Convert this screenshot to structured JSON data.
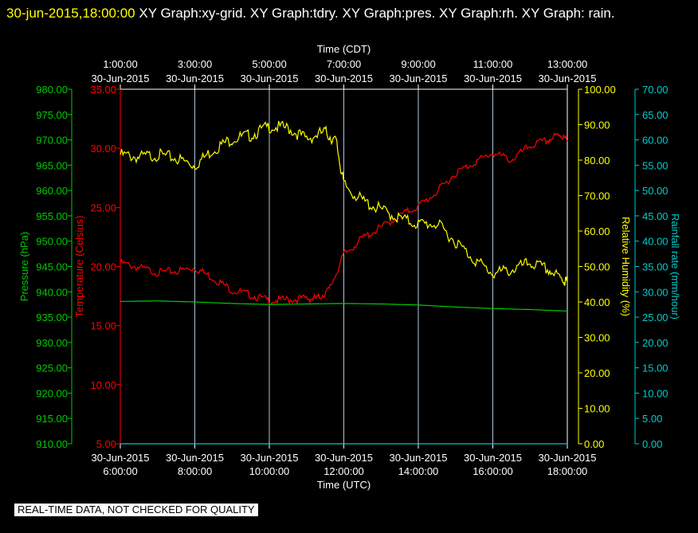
{
  "header": {
    "timestamp": "30-jun-2015,18:00:00",
    "graphs": "  XY Graph:xy-grid.  XY Graph:tdry.  XY Graph:pres.  XY Graph:rh.  XY Graph: rain."
  },
  "notice": "REAL-TIME DATA, NOT CHECKED FOR QUALITY",
  "colors": {
    "pressure": "#00cc00",
    "temperature": "#ff0000",
    "humidity": "#ffff00",
    "rain": "#00cccc",
    "grid": "#b0c4d8"
  },
  "chart_data": {
    "type": "line",
    "x_top": {
      "label": "Time (CDT)",
      "ticks": [
        {
          "time": "1:00:00",
          "date": "30-Jun-2015"
        },
        {
          "time": "3:00:00",
          "date": "30-Jun-2015"
        },
        {
          "time": "5:00:00",
          "date": "30-Jun-2015"
        },
        {
          "time": "7:00:00",
          "date": "30-Jun-2015"
        },
        {
          "time": "9:00:00",
          "date": "30-Jun-2015"
        },
        {
          "time": "11:00:00",
          "date": "30-Jun-2015"
        },
        {
          "time": "13:00:00",
          "date": "30-Jun-2015"
        }
      ]
    },
    "x_bottom": {
      "label": "Time (UTC)",
      "range": [
        "2015-06-30 06:00",
        "2015-06-30 18:00"
      ],
      "ticks": [
        {
          "date": "30-Jun-2015",
          "time": "6:00:00"
        },
        {
          "date": "30-Jun-2015",
          "time": "8:00:00"
        },
        {
          "date": "30-Jun-2015",
          "time": "10:00:00"
        },
        {
          "date": "30-Jun-2015",
          "time": "12:00:00"
        },
        {
          "date": "30-Jun-2015",
          "time": "14:00:00"
        },
        {
          "date": "30-Jun-2015",
          "time": "16:00:00"
        },
        {
          "date": "30-Jun-2015",
          "time": "18:00:00"
        }
      ]
    },
    "axes": {
      "pressure": {
        "label": "Pressure (hPa)",
        "range": [
          910,
          980
        ],
        "ticks": [
          "980.00",
          "975.00",
          "970.00",
          "965.00",
          "960.00",
          "955.00",
          "950.00",
          "945.00",
          "940.00",
          "935.00",
          "930.00",
          "925.00",
          "920.00",
          "915.00",
          "910.00"
        ]
      },
      "temperature": {
        "label": "Temperature (Celsius)",
        "range": [
          5,
          35
        ],
        "ticks": [
          "35.00",
          "30.00",
          "25.00",
          "20.00",
          "15.00",
          "10.00",
          "5.00"
        ]
      },
      "humidity": {
        "label": "Relative Humidity (%)",
        "range": [
          0,
          100
        ],
        "ticks": [
          "100.00",
          "90.00",
          "80.00",
          "70.00",
          "60.00",
          "50.00",
          "40.00",
          "30.00",
          "20.00",
          "10.00",
          "0.00"
        ]
      },
      "rain": {
        "label": "Rainfall rate (mm/hour)",
        "range": [
          0,
          70
        ],
        "ticks": [
          "70.00",
          "65.00",
          "60.00",
          "55.00",
          "50.00",
          "45.00",
          "40.00",
          "35.00",
          "30.00",
          "25.00",
          "20.00",
          "15.00",
          "10.00",
          "5.00",
          "0.00"
        ]
      }
    },
    "grid": true,
    "series": [
      {
        "key": "temperature",
        "x": [
          6.0,
          6.5,
          7.0,
          7.5,
          8.0,
          8.5,
          9.0,
          9.5,
          10.0,
          10.5,
          11.0,
          11.3,
          11.6,
          12.0,
          12.5,
          13.0,
          13.5,
          14.0,
          14.5,
          15.0,
          15.5,
          16.0,
          16.5,
          17.0,
          17.5,
          17.8,
          18.0
        ],
        "y": [
          20.3,
          19.9,
          19.5,
          19.6,
          19.9,
          19.0,
          18.0,
          17.6,
          17.1,
          17.2,
          17.3,
          17.3,
          18.0,
          21.0,
          22.4,
          23.3,
          24.3,
          25.1,
          26.3,
          27.9,
          28.8,
          29.6,
          29.0,
          30.2,
          30.7,
          31.2,
          30.6
        ]
      },
      {
        "key": "humidity",
        "x": [
          6.0,
          6.5,
          7.0,
          7.5,
          8.0,
          8.5,
          9.0,
          9.5,
          10.0,
          10.5,
          11.0,
          11.5,
          11.8,
          12.0,
          12.5,
          13.0,
          13.5,
          14.0,
          14.5,
          15.0,
          15.5,
          16.0,
          16.5,
          17.0,
          17.5,
          17.9,
          18.0
        ],
        "y": [
          81.5,
          80.8,
          81.5,
          80.5,
          78.5,
          83.0,
          86.0,
          87.0,
          89.5,
          89.0,
          86.0,
          88.0,
          85.0,
          73.0,
          68.5,
          66.0,
          63.5,
          62.0,
          62.0,
          57.0,
          52.0,
          48.0,
          49.0,
          51.0,
          49.0,
          46.0,
          45.5
        ]
      },
      {
        "key": "pressure",
        "x": [
          6.0,
          7.0,
          8.0,
          9.0,
          10.0,
          11.0,
          12.0,
          13.0,
          14.0,
          15.0,
          16.0,
          17.0,
          18.0
        ],
        "y": [
          938.1,
          938.2,
          938.0,
          937.7,
          937.5,
          937.6,
          937.7,
          937.6,
          937.4,
          937.0,
          936.7,
          936.5,
          936.2
        ]
      },
      {
        "key": "rain",
        "x": [
          6.0,
          18.0
        ],
        "y": [
          0.0,
          0.0
        ]
      }
    ]
  }
}
